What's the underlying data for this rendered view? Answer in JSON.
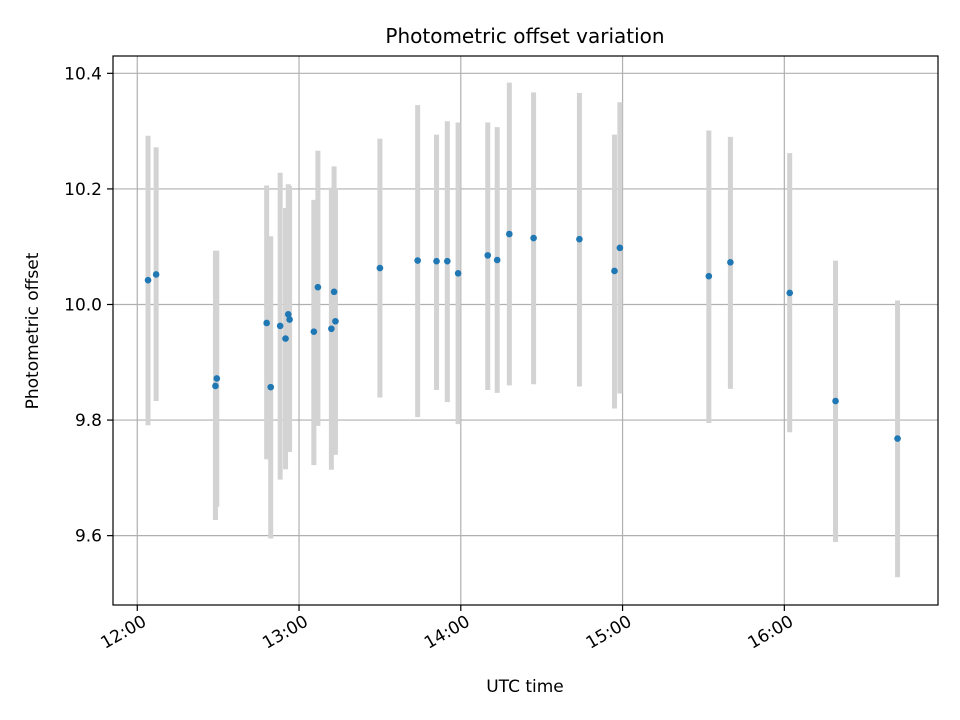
{
  "chart_data": {
    "type": "scatter",
    "title": "Photometric offset variation",
    "xlabel": "UTC time",
    "ylabel": "Photometric offset",
    "xlim": [
      "11:51",
      "16:57"
    ],
    "ylim": [
      9.48,
      10.43
    ],
    "x_ticks": [
      "12:00",
      "13:00",
      "14:00",
      "15:00",
      "16:00"
    ],
    "y_ticks": [
      "9.6",
      "9.8",
      "10.0",
      "10.2",
      "10.4"
    ],
    "y_tick_values": [
      9.6,
      9.8,
      10.0,
      10.2,
      10.4
    ],
    "grid": true,
    "colors": {
      "point": "#1f77b4",
      "errorbar": "#d3d3d3",
      "grid": "#b0b0b0"
    },
    "points": [
      {
        "x": "12:04",
        "y": 10.042,
        "ylo": 9.791,
        "yhi": 10.292
      },
      {
        "x": "12:07",
        "y": 10.052,
        "ylo": 9.833,
        "yhi": 10.272
      },
      {
        "x": "12:29",
        "y": 9.859,
        "ylo": 9.627,
        "yhi": 10.093
      },
      {
        "x": "12:29.5",
        "y": 9.872,
        "ylo": 9.65,
        "yhi": 10.093
      },
      {
        "x": "12:48",
        "y": 9.968,
        "ylo": 9.732,
        "yhi": 10.206
      },
      {
        "x": "12:49.5",
        "y": 9.857,
        "ylo": 9.595,
        "yhi": 10.118
      },
      {
        "x": "12:53",
        "y": 9.963,
        "ylo": 9.697,
        "yhi": 10.228
      },
      {
        "x": "12:55",
        "y": 9.941,
        "ylo": 9.715,
        "yhi": 10.167
      },
      {
        "x": "12:56",
        "y": 9.983,
        "ylo": 9.745,
        "yhi": 10.208
      },
      {
        "x": "12:56.5",
        "y": 9.974,
        "ylo": 9.745,
        "yhi": 10.205
      },
      {
        "x": "13:05.5",
        "y": 9.953,
        "ylo": 9.722,
        "yhi": 10.181
      },
      {
        "x": "13:07",
        "y": 10.03,
        "ylo": 9.79,
        "yhi": 10.266
      },
      {
        "x": "13:12",
        "y": 9.958,
        "ylo": 9.714,
        "yhi": 10.202
      },
      {
        "x": "13:13",
        "y": 10.022,
        "ylo": 9.755,
        "yhi": 10.239
      },
      {
        "x": "13:13.5",
        "y": 9.971,
        "ylo": 9.74,
        "yhi": 10.2
      },
      {
        "x": "13:30",
        "y": 10.063,
        "ylo": 9.839,
        "yhi": 10.287
      },
      {
        "x": "13:44",
        "y": 10.076,
        "ylo": 9.805,
        "yhi": 10.345
      },
      {
        "x": "13:51",
        "y": 10.075,
        "ylo": 9.852,
        "yhi": 10.294
      },
      {
        "x": "13:55",
        "y": 10.075,
        "ylo": 9.831,
        "yhi": 10.317
      },
      {
        "x": "13:59",
        "y": 10.054,
        "ylo": 9.793,
        "yhi": 10.315
      },
      {
        "x": "14:10",
        "y": 10.085,
        "ylo": 9.852,
        "yhi": 10.315
      },
      {
        "x": "14:13.5",
        "y": 10.077,
        "ylo": 9.847,
        "yhi": 10.307
      },
      {
        "x": "14:18",
        "y": 10.122,
        "ylo": 9.86,
        "yhi": 10.384
      },
      {
        "x": "14:27",
        "y": 10.115,
        "ylo": 9.862,
        "yhi": 10.367
      },
      {
        "x": "14:44",
        "y": 10.113,
        "ylo": 9.858,
        "yhi": 10.366
      },
      {
        "x": "14:57",
        "y": 10.058,
        "ylo": 9.82,
        "yhi": 10.294
      },
      {
        "x": "14:59",
        "y": 10.098,
        "ylo": 9.846,
        "yhi": 10.35
      },
      {
        "x": "15:32",
        "y": 10.049,
        "ylo": 9.795,
        "yhi": 10.301
      },
      {
        "x": "15:40",
        "y": 10.073,
        "ylo": 9.854,
        "yhi": 10.29
      },
      {
        "x": "16:02",
        "y": 10.02,
        "ylo": 9.779,
        "yhi": 10.262
      },
      {
        "x": "16:19",
        "y": 9.833,
        "ylo": 9.589,
        "yhi": 10.076
      },
      {
        "x": "16:42",
        "y": 9.768,
        "ylo": 9.528,
        "yhi": 10.007
      }
    ]
  }
}
